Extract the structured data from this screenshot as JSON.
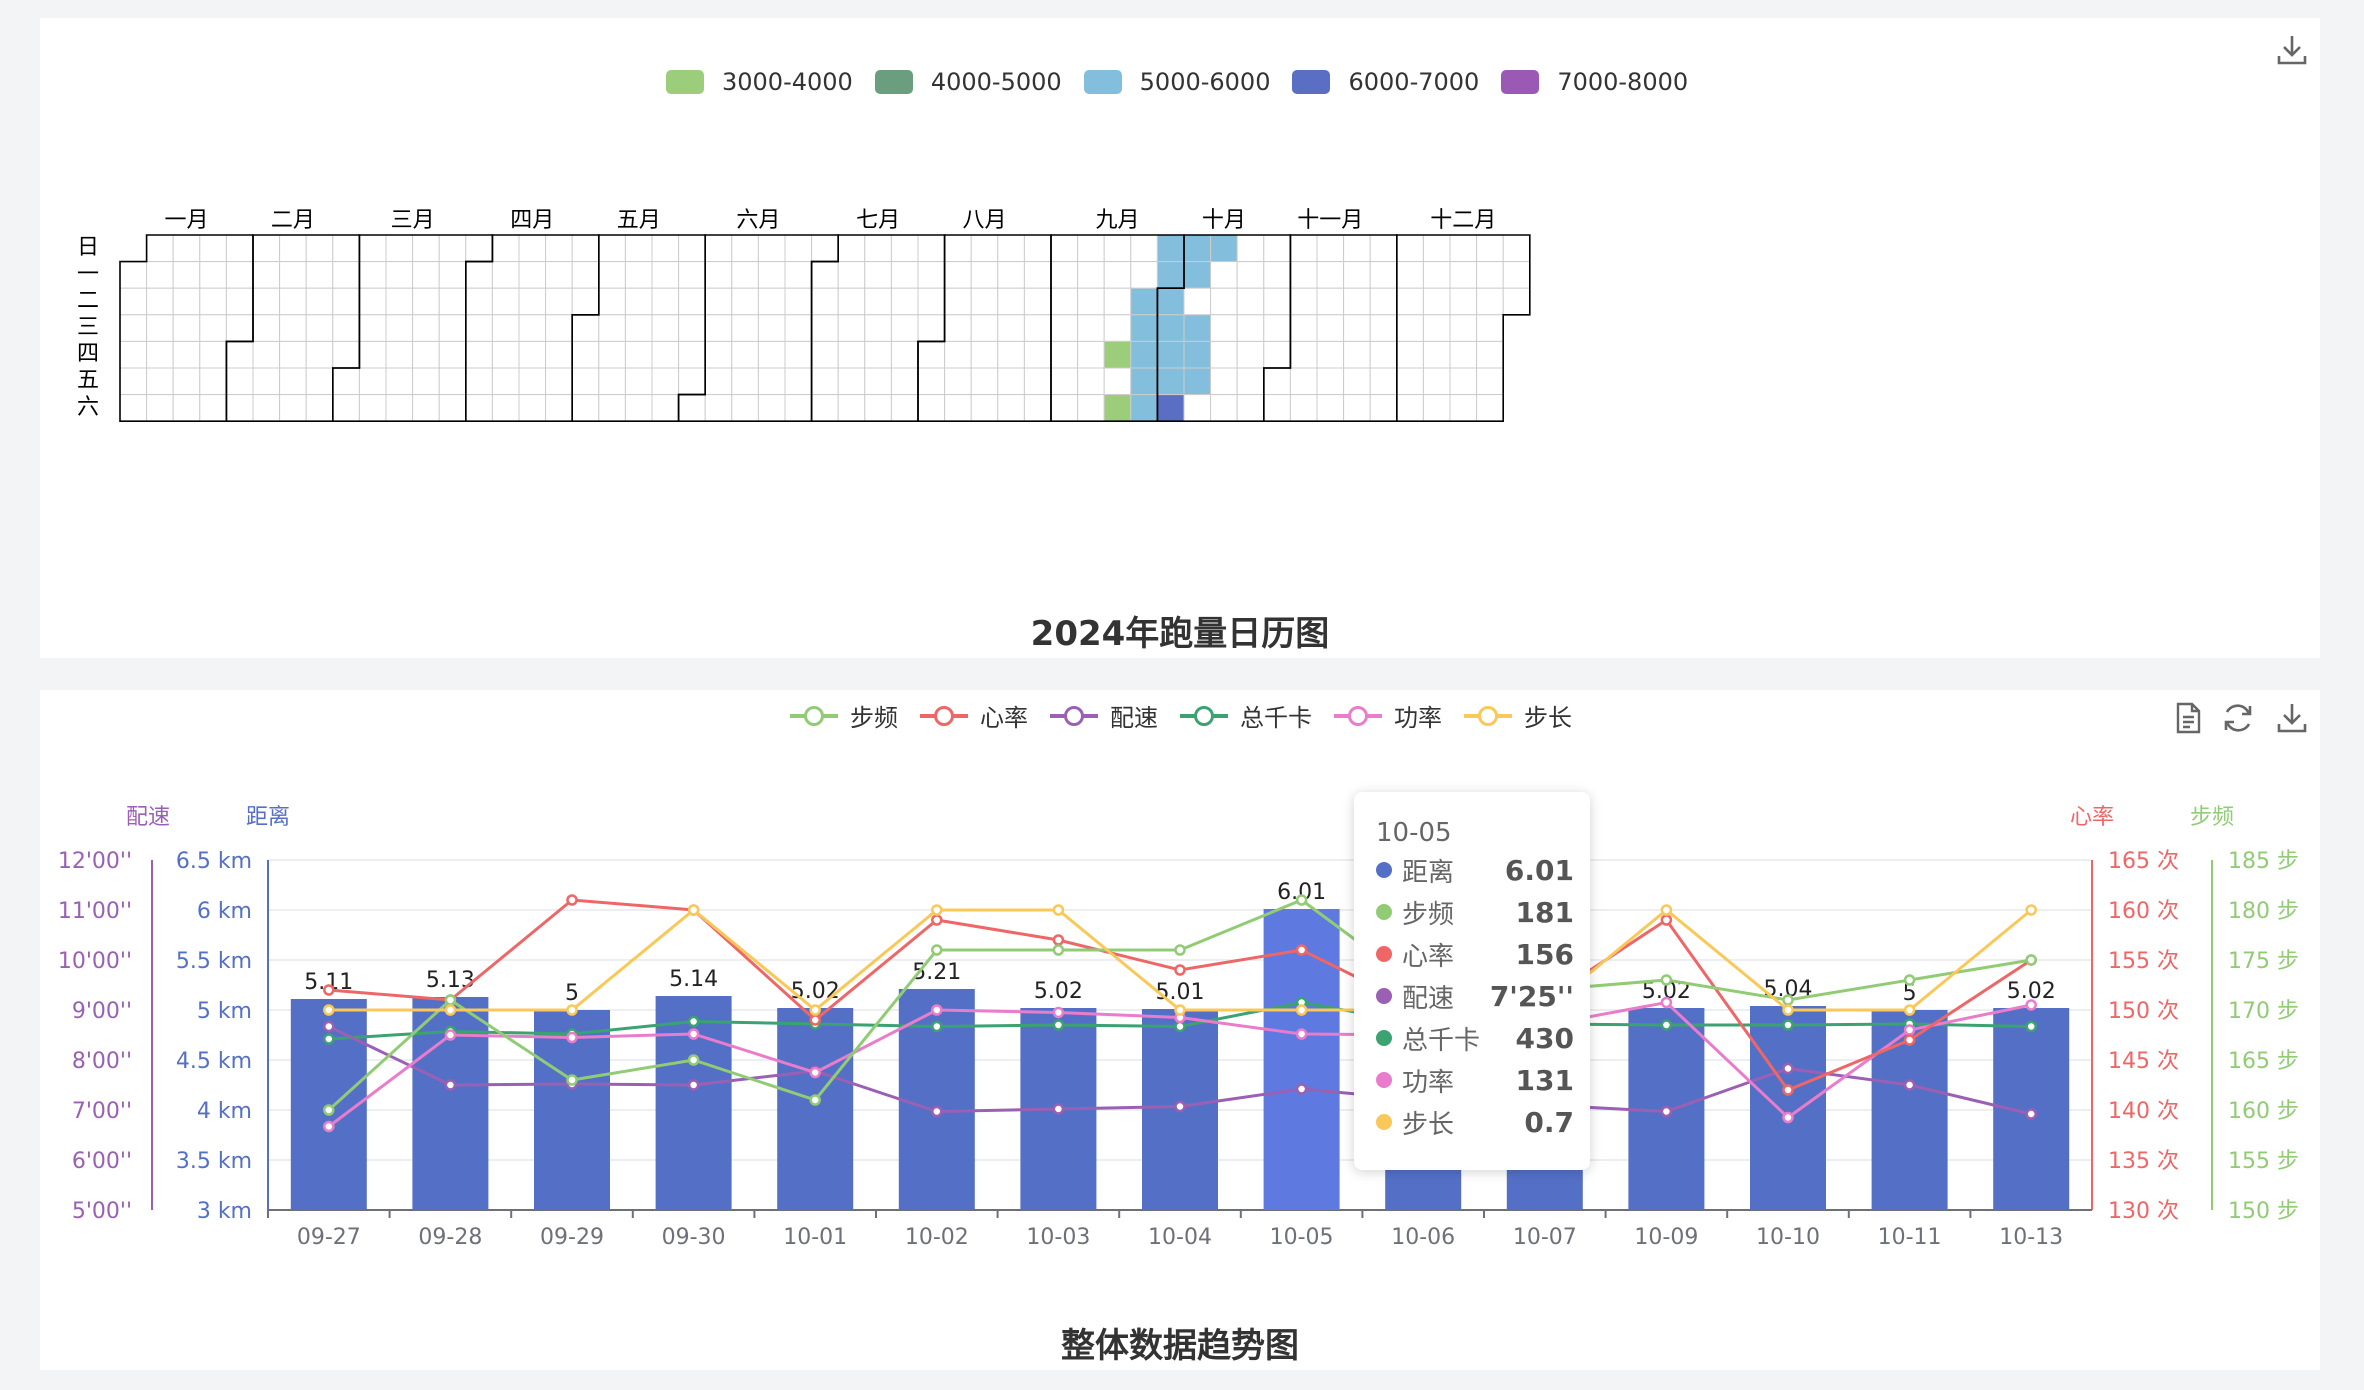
{
  "calendar_panel": {
    "title": "2024年跑量日历图",
    "legend": [
      {
        "label": "3000-4000",
        "color": "#9ccd7b"
      },
      {
        "label": "4000-5000",
        "color": "#6b9e7e"
      },
      {
        "label": "5000-6000",
        "color": "#83bedd"
      },
      {
        "label": "6000-7000",
        "color": "#5a6fc4"
      },
      {
        "label": "7000-8000",
        "color": "#9b59b6"
      }
    ],
    "months": [
      "一月",
      "二月",
      "三月",
      "四月",
      "五月",
      "六月",
      "七月",
      "八月",
      "九月",
      "十月",
      "十一月",
      "十二月"
    ],
    "weekdays": [
      "日",
      "一",
      "二",
      "三",
      "四",
      "五",
      "六"
    ],
    "download_icon": "download-icon"
  },
  "trend_panel": {
    "title": "整体数据趋势图",
    "legend": [
      {
        "label": "步频",
        "color": "#91cc75"
      },
      {
        "label": "心率",
        "color": "#ee6666"
      },
      {
        "label": "配速",
        "color": "#9a60b4"
      },
      {
        "label": "总千卡",
        "color": "#3ba272"
      },
      {
        "label": "功率",
        "color": "#ea7ccc"
      },
      {
        "label": "步长",
        "color": "#fac858"
      }
    ],
    "toolbox": [
      "data-view-icon",
      "refresh-icon",
      "download-icon"
    ],
    "tooltip": {
      "date": "10-05",
      "rows": [
        {
          "name": "距离",
          "value": "6.01",
          "color": "#5470c6"
        },
        {
          "name": "步频",
          "value": "181",
          "color": "#91cc75"
        },
        {
          "name": "心率",
          "value": "156",
          "color": "#ee6666"
        },
        {
          "name": "配速",
          "value": "7'25''",
          "color": "#9a60b4"
        },
        {
          "name": "总千卡",
          "value": "430",
          "color": "#3ba272"
        },
        {
          "name": "功率",
          "value": "131",
          "color": "#ea7ccc"
        },
        {
          "name": "步长",
          "value": "0.7",
          "color": "#fac858"
        }
      ]
    }
  },
  "chart_data": [
    {
      "type": "heatmap",
      "calendar": true,
      "year": 2024,
      "title": "2024年跑量日历图",
      "value_ranges": [
        "3000-4000",
        "4000-5000",
        "5000-6000",
        "6000-7000",
        "7000-8000"
      ],
      "entries": [
        {
          "date": "2024-09-19",
          "range": "3000-4000"
        },
        {
          "date": "2024-09-21",
          "range": "3000-4000"
        },
        {
          "date": "2024-09-24",
          "range": "5000-6000"
        },
        {
          "date": "2024-09-25",
          "range": "5000-6000"
        },
        {
          "date": "2024-09-26",
          "range": "5000-6000"
        },
        {
          "date": "2024-09-27",
          "range": "5000-6000"
        },
        {
          "date": "2024-09-28",
          "range": "5000-6000"
        },
        {
          "date": "2024-09-29",
          "range": "5000-6000"
        },
        {
          "date": "2024-09-30",
          "range": "5000-6000"
        },
        {
          "date": "2024-10-01",
          "range": "5000-6000"
        },
        {
          "date": "2024-10-02",
          "range": "5000-6000"
        },
        {
          "date": "2024-10-03",
          "range": "5000-6000"
        },
        {
          "date": "2024-10-04",
          "range": "5000-6000"
        },
        {
          "date": "2024-10-05",
          "range": "6000-7000"
        },
        {
          "date": "2024-10-06",
          "range": "5000-6000"
        },
        {
          "date": "2024-10-07",
          "range": "5000-6000"
        },
        {
          "date": "2024-10-09",
          "range": "5000-6000"
        },
        {
          "date": "2024-10-10",
          "range": "5000-6000"
        },
        {
          "date": "2024-10-11",
          "range": "5000-6000"
        },
        {
          "date": "2024-10-13",
          "range": "5000-6000"
        }
      ]
    },
    {
      "type": "bar",
      "title": "整体数据趋势图",
      "categories": [
        "09-27",
        "09-28",
        "09-29",
        "09-30",
        "10-01",
        "10-02",
        "10-03",
        "10-04",
        "10-05",
        "10-06",
        "10-07",
        "10-09",
        "10-10",
        "10-11",
        "10-13"
      ],
      "series": [
        {
          "name": "距离",
          "type": "bar",
          "axis": "距离",
          "color": "#5470c6",
          "values": [
            5.11,
            5.13,
            5,
            5.14,
            5.02,
            5.21,
            5.02,
            5.01,
            6.01,
            5,
            5,
            5.02,
            5.04,
            5,
            5.02
          ]
        },
        {
          "name": "步频",
          "type": "line",
          "axis": "步频",
          "color": "#91cc75",
          "values": [
            160,
            171,
            163,
            165,
            161,
            176,
            176,
            176,
            181,
            172,
            172,
            173,
            171,
            173,
            175
          ]
        },
        {
          "name": "心率",
          "type": "line",
          "axis": "心率",
          "color": "#ee6666",
          "values": [
            152,
            151,
            161,
            160,
            149,
            159,
            157,
            154,
            156,
            150,
            151,
            159,
            142,
            147,
            155
          ]
        },
        {
          "name": "配速",
          "type": "line",
          "axis": "配速",
          "color": "#9a60b4",
          "values": [
            8.67,
            7.5,
            7.52,
            7.5,
            7.78,
            6.97,
            7.02,
            7.07,
            7.42,
            7.2,
            7.1,
            6.97,
            7.83,
            7.5,
            6.92
          ]
        },
        {
          "name": "总千卡",
          "type": "line",
          "axis": "配速",
          "color": "#3ba272",
          "values": [
            8.42,
            8.57,
            8.52,
            8.77,
            8.72,
            8.67,
            8.7,
            8.67,
            9.15,
            8.72,
            8.72,
            8.7,
            8.7,
            8.72,
            8.67
          ]
        },
        {
          "name": "功率",
          "type": "line",
          "axis": "配速",
          "color": "#ea7ccc",
          "values": [
            6.67,
            8.5,
            8.45,
            8.52,
            7.75,
            9,
            8.95,
            8.85,
            8.52,
            8.5,
            8.7,
            9.15,
            6.85,
            8.6,
            9.1
          ]
        },
        {
          "name": "步长",
          "type": "line",
          "axis": "步频",
          "color": "#fac858",
          "values": [
            170,
            170,
            170,
            180,
            170,
            180,
            180,
            170,
            170,
            170,
            170,
            180,
            170,
            170,
            180
          ]
        }
      ],
      "axes": {
        "距离": {
          "ylim": [
            3,
            6.5
          ],
          "ticks": [
            "3 km",
            "3.5 km",
            "4 km",
            "4.5 km",
            "5 km",
            "5.5 km",
            "6 km",
            "6.5 km"
          ]
        },
        "配速": {
          "ylim": [
            5,
            12
          ],
          "ticks": [
            "5'00''",
            "6'00''",
            "7'00''",
            "8'00''",
            "9'00''",
            "10'00''",
            "11'00''",
            "12'00''"
          ]
        },
        "心率": {
          "ylim": [
            130,
            165
          ],
          "ticks": [
            "130 次",
            "135 次",
            "140 次",
            "145 次",
            "150 次",
            "155 次",
            "160 次",
            "165 次"
          ]
        },
        "步频": {
          "ylim": [
            150,
            185
          ],
          "ticks": [
            "150 步",
            "155 步",
            "160 步",
            "165 步",
            "170 步",
            "175 步",
            "180 步",
            "185 步"
          ]
        }
      },
      "grid": true,
      "legend": "top-center"
    }
  ]
}
